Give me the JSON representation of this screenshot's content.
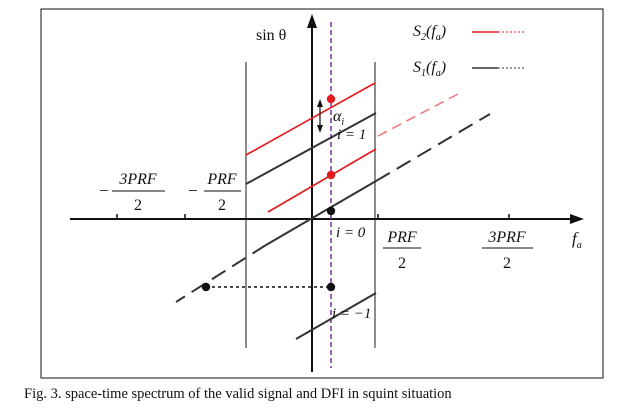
{
  "figure": {
    "y_axis_label": "sin θ",
    "x_axis_label": "f",
    "x_axis_subscript": "a",
    "legend": [
      {
        "label": "S",
        "sub": "2",
        "arg": "(f",
        "argsub": "a",
        "close": ")",
        "color": "#e31a1c"
      },
      {
        "label": "S",
        "sub": "1",
        "arg": "(f",
        "argsub": "a",
        "close": ")",
        "color": "#333333"
      }
    ],
    "ticks": [
      {
        "sign": "−",
        "num": "3PRF",
        "den": "2"
      },
      {
        "sign": "−",
        "num": "PRF",
        "den": "2"
      },
      {
        "sign": "",
        "num": "PRF",
        "den": "2"
      },
      {
        "sign": "",
        "num": "3PRF",
        "den": "2"
      }
    ],
    "annotations": {
      "alpha_symbol": "α",
      "alpha_sub": "i",
      "i_pos": "i = 1",
      "i_zero": "i = 0",
      "i_neg": "i = −1"
    },
    "colors": {
      "red": "#e31a1c",
      "dark": "#333333",
      "purple": "#7b2fa0",
      "gray": "#8c8c8c"
    }
  },
  "caption": "Fig. 3. space-time spectrum of the valid signal and DFI in squint situation"
}
